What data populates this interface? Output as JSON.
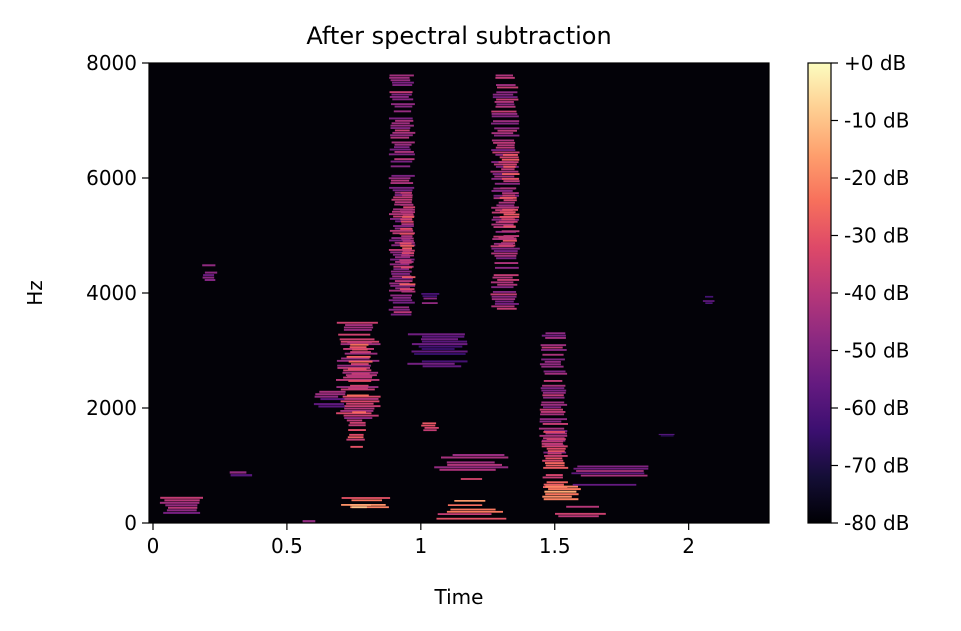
{
  "chart_data": {
    "type": "heatmap",
    "title": "After spectral subtraction",
    "xlabel": "Time",
    "ylabel": "Hz",
    "xlim": [
      0,
      2.3
    ],
    "ylim": [
      0,
      8000
    ],
    "x_ticks": [
      0,
      0.5,
      1,
      1.5,
      2
    ],
    "x_tick_labels": [
      "0",
      "0.5",
      "1",
      "1.5",
      "2"
    ],
    "y_ticks": [
      0,
      2000,
      4000,
      6000,
      8000
    ],
    "y_tick_labels": [
      "0",
      "2000",
      "4000",
      "6000",
      "8000"
    ],
    "colorbar": {
      "colormap": "magma",
      "range_db": [
        -80,
        0
      ],
      "ticks": [
        0,
        -10,
        -20,
        -30,
        -40,
        -50,
        -60,
        -70,
        -80
      ],
      "tick_labels": [
        "+0 dB",
        "-10 dB",
        "-20 dB",
        "-30 dB",
        "-40 dB",
        "-50 dB",
        "-60 dB",
        "-70 dB",
        "-80 dB"
      ]
    },
    "background_db": -80,
    "regions": [
      {
        "t": [
          0.88,
          0.98
        ],
        "f": [
          3600,
          7800
        ],
        "db": -45
      },
      {
        "t": [
          0.92,
          0.98
        ],
        "f": [
          4000,
          5800
        ],
        "db": -35
      },
      {
        "t": [
          1.26,
          1.37
        ],
        "f": [
          3700,
          7800
        ],
        "db": -45
      },
      {
        "t": [
          1.29,
          1.37
        ],
        "f": [
          4800,
          6500
        ],
        "db": -35
      },
      {
        "t": [
          0.68,
          0.85
        ],
        "f": [
          1800,
          3500
        ],
        "db": -40
      },
      {
        "t": [
          0.72,
          0.82
        ],
        "f": [
          1900,
          3200
        ],
        "db": -32
      },
      {
        "t": [
          0.6,
          0.72
        ],
        "f": [
          2000,
          2300
        ],
        "db": -50
      },
      {
        "t": [
          0.72,
          0.8
        ],
        "f": [
          1300,
          1800
        ],
        "db": -35
      },
      {
        "t": [
          1.44,
          1.55
        ],
        "f": [
          1200,
          3400
        ],
        "db": -45
      },
      {
        "t": [
          1.45,
          1.55
        ],
        "f": [
          600,
          1600
        ],
        "db": -32
      },
      {
        "t": [
          1.0,
          1.07
        ],
        "f": [
          1550,
          1750
        ],
        "db": -30
      },
      {
        "t": [
          0.18,
          0.24
        ],
        "f": [
          4200,
          4500
        ],
        "db": -50
      },
      {
        "t": [
          1.0,
          1.07
        ],
        "f": [
          3800,
          4000
        ],
        "db": -55
      },
      {
        "t": [
          0.95,
          1.18
        ],
        "f": [
          2700,
          3300
        ],
        "db": -60
      },
      {
        "t": [
          1.05,
          1.35
        ],
        "f": [
          900,
          1200
        ],
        "db": -40
      },
      {
        "t": [
          1.12,
          1.25
        ],
        "f": [
          700,
          900
        ],
        "db": -30
      },
      {
        "t": [
          0.7,
          0.9
        ],
        "f": [
          250,
          450
        ],
        "db": -25
      },
      {
        "t": [
          0.72,
          0.82
        ],
        "f": [
          250,
          330
        ],
        "db": -10
      },
      {
        "t": [
          1.05,
          1.32
        ],
        "f": [
          50,
          250
        ],
        "db": -30
      },
      {
        "t": [
          1.1,
          1.25
        ],
        "f": [
          250,
          400
        ],
        "db": -20
      },
      {
        "t": [
          1.45,
          1.6
        ],
        "f": [
          300,
          650
        ],
        "db": -22
      },
      {
        "t": [
          1.5,
          1.7
        ],
        "f": [
          50,
          300
        ],
        "db": -35
      },
      {
        "t": [
          0.02,
          0.2
        ],
        "f": [
          150,
          500
        ],
        "db": -45
      },
      {
        "t": [
          0.55,
          0.62
        ],
        "f": [
          0,
          100
        ],
        "db": -40
      },
      {
        "t": [
          1.55,
          1.85
        ],
        "f": [
          600,
          1000
        ],
        "db": -50
      },
      {
        "t": [
          0.28,
          0.37
        ],
        "f": [
          800,
          900
        ],
        "db": -55
      },
      {
        "t": [
          1.88,
          1.95
        ],
        "f": [
          1500,
          1550
        ],
        "db": -60
      },
      {
        "t": [
          2.05,
          2.1
        ],
        "f": [
          3800,
          3950
        ],
        "db": -55
      }
    ]
  }
}
